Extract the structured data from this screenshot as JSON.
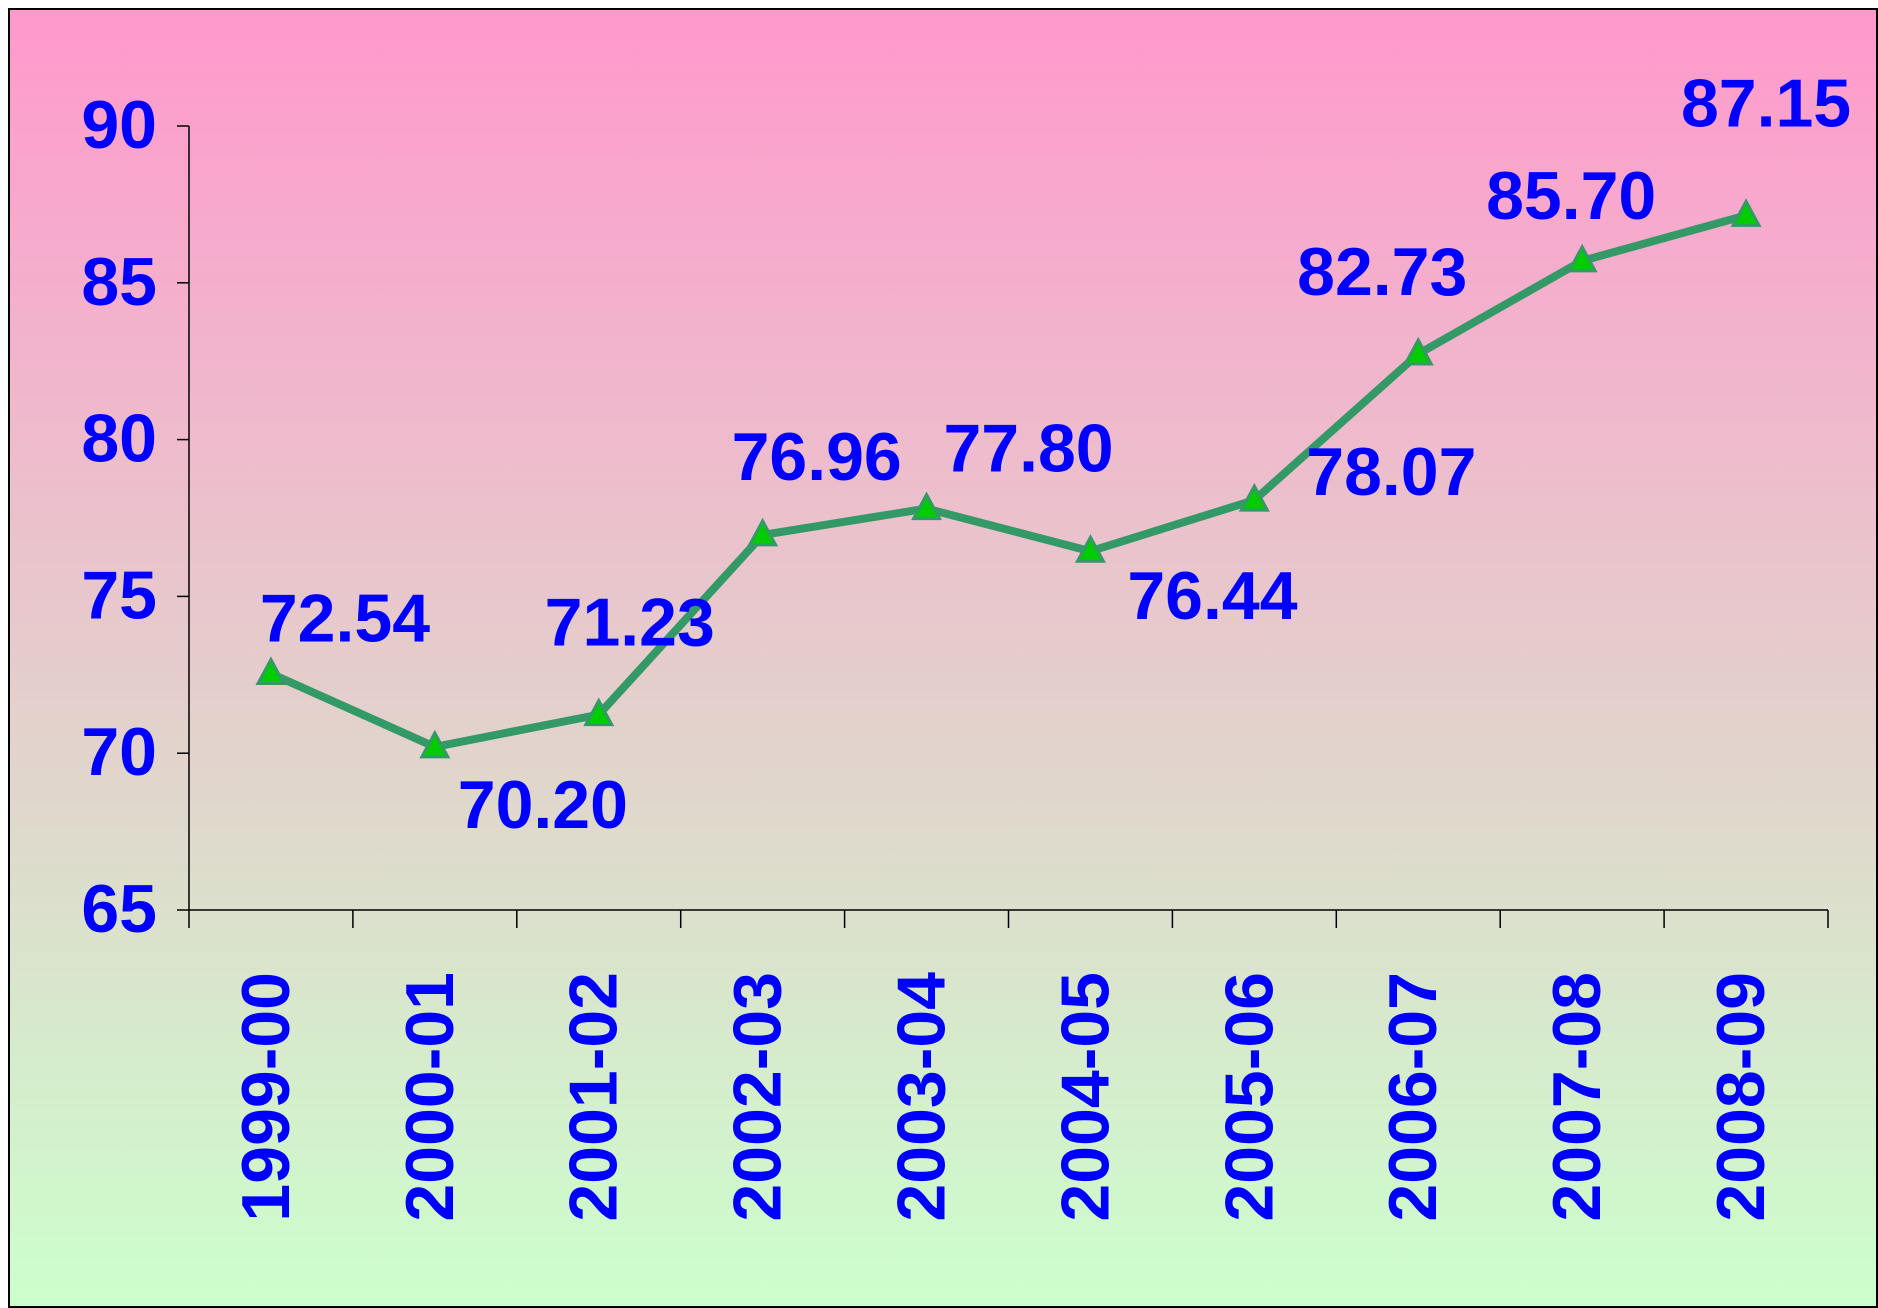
{
  "chart_data": {
    "type": "line",
    "categories": [
      "1999-00",
      "2000-01",
      "2001-02",
      "2002-03",
      "2003-04",
      "2004-05",
      "2005-06",
      "2006-07",
      "2007-08",
      "2008-09"
    ],
    "series": [
      {
        "color": "#339966",
        "values": [
          72.54,
          70.2,
          71.23,
          76.96,
          77.8,
          76.44,
          78.07,
          82.73,
          85.7,
          87.15
        ],
        "value_labels": [
          "72.54",
          "70.20",
          "71.23",
          "76.96",
          "77.80",
          "76.44",
          "78.07",
          "82.73",
          "85.70",
          "87.15"
        ]
      }
    ],
    "ylim": [
      65,
      90
    ],
    "yticks": [
      65,
      70,
      75,
      80,
      85,
      90
    ]
  }
}
